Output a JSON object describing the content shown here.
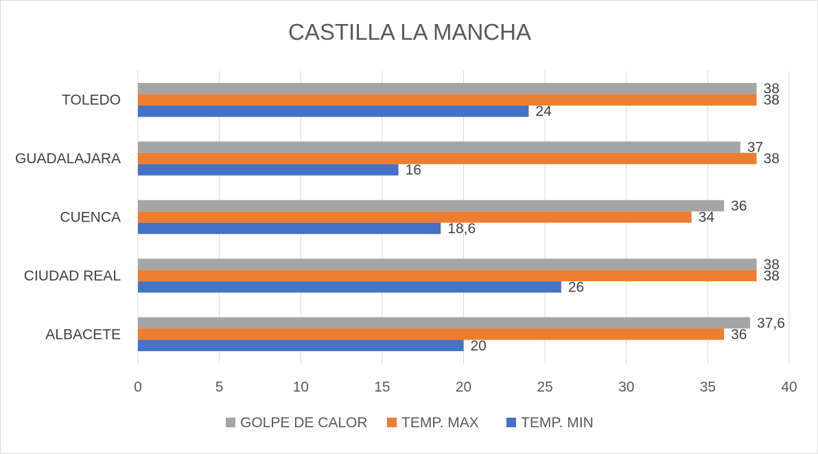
{
  "chart_data": {
    "type": "bar",
    "orientation": "horizontal",
    "title": "CASTILLA LA MANCHA",
    "categories": [
      "ALBACETE",
      "CIUDAD REAL",
      "CUENCA",
      "GUADALAJARA",
      "TOLEDO"
    ],
    "series": [
      {
        "name": "TEMP. MIN",
        "color": "#4472c4",
        "values": [
          20,
          26,
          18.6,
          16,
          24
        ],
        "labels": [
          "20",
          "26",
          "18,6",
          "16",
          "24"
        ]
      },
      {
        "name": "TEMP. MAX",
        "color": "#ed7d31",
        "values": [
          36,
          38,
          34,
          38,
          38
        ],
        "labels": [
          "36",
          "38",
          "34",
          "38",
          "38"
        ]
      },
      {
        "name": "GOLPE DE CALOR",
        "color": "#a5a5a5",
        "values": [
          37.6,
          38,
          36,
          37,
          38
        ],
        "labels": [
          "37,6",
          "38",
          "36",
          "37",
          "38"
        ]
      }
    ],
    "xlim": [
      0,
      40
    ],
    "xticks": [
      0,
      5,
      10,
      15,
      20,
      25,
      30,
      35,
      40
    ],
    "xtick_labels": [
      "0",
      "5",
      "10",
      "15",
      "20",
      "25",
      "30",
      "35",
      "40"
    ],
    "grid": true,
    "legend": {
      "placement": "bottom",
      "order": [
        "GOLPE DE CALOR",
        "TEMP. MAX",
        "TEMP. MIN"
      ]
    }
  }
}
